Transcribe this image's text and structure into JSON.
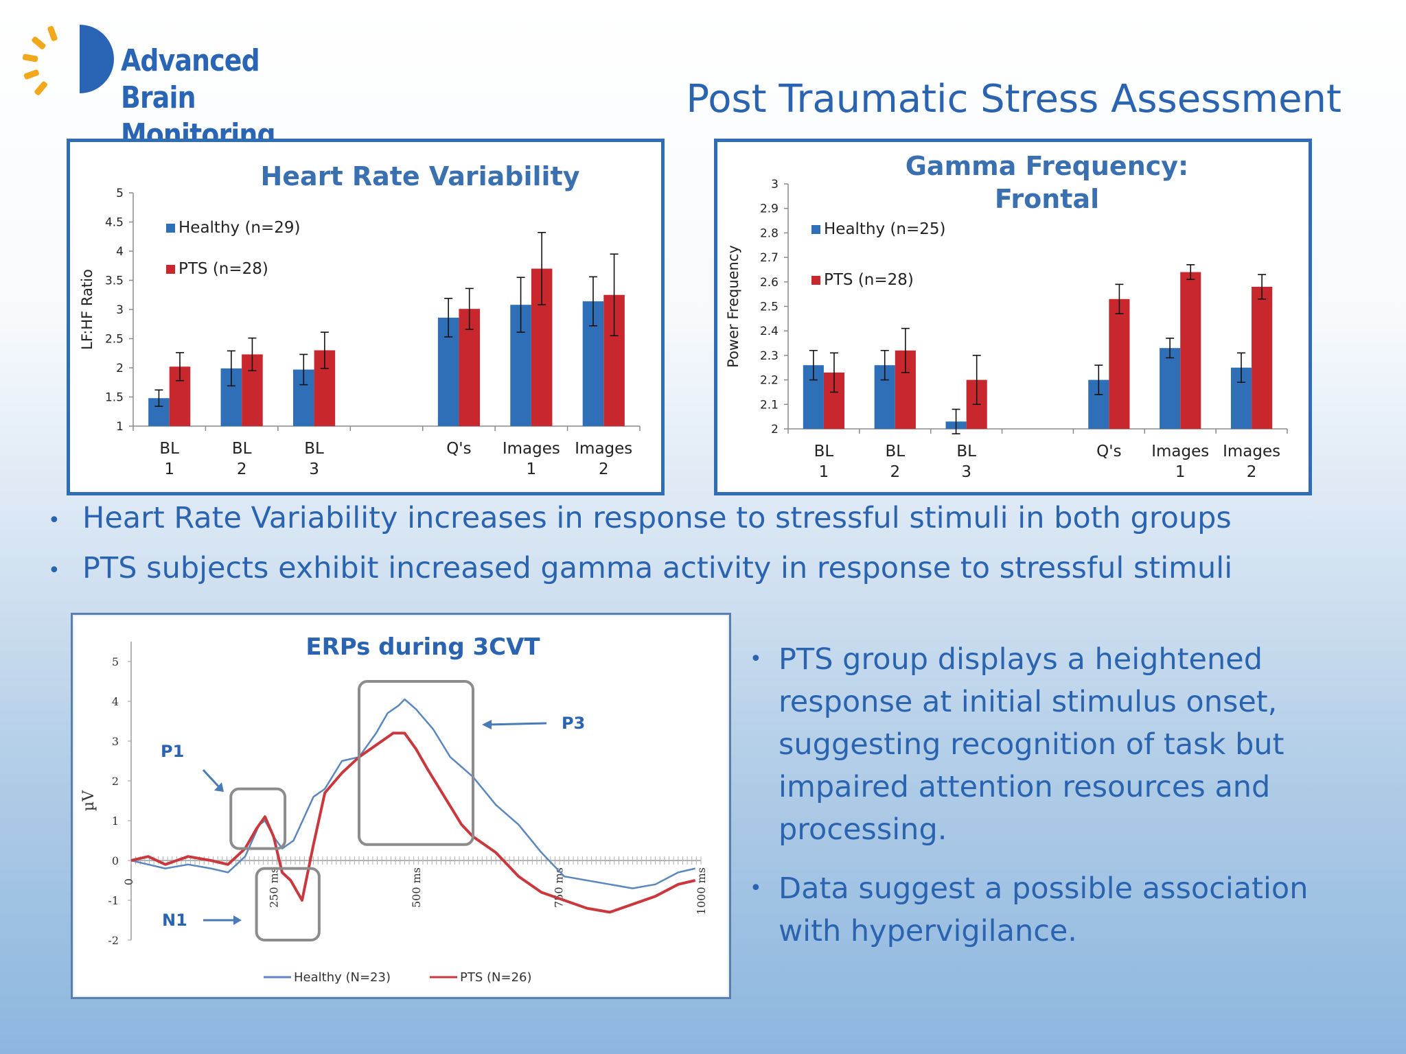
{
  "logo": {
    "line1": "Advanced",
    "line2": "Brain Monitoring"
  },
  "slide_title": "Post Traumatic Stress Assessment",
  "colors": {
    "healthy": "#2f6fb8",
    "pts": "#c8282d",
    "title_blue": "#2a64b0",
    "chart_title": "#3a6fb0"
  },
  "chart_data": [
    {
      "type": "bar",
      "title": "Heart Rate Variability",
      "ylabel": "LF:HF Ratio",
      "xlabel": "",
      "ylim": [
        1,
        5
      ],
      "yticks": [
        "1",
        "1.5",
        "2",
        "2.5",
        "3",
        "3.5",
        "4",
        "4.5",
        "5"
      ],
      "categories": [
        "BL 1",
        "BL 2",
        "BL 3",
        "",
        "Q's",
        "Images 1",
        "Images 2"
      ],
      "series": [
        {
          "name": "Healthy (n=29)",
          "values": [
            1.48,
            1.99,
            1.97,
            null,
            2.86,
            3.08,
            3.14
          ],
          "errors": [
            0.14,
            0.3,
            0.26,
            null,
            0.33,
            0.47,
            0.42
          ]
        },
        {
          "name": "PTS (n=28)",
          "values": [
            2.02,
            2.23,
            2.3,
            null,
            3.01,
            3.7,
            3.25
          ],
          "errors": [
            0.24,
            0.28,
            0.31,
            null,
            0.35,
            0.62,
            0.7
          ]
        }
      ],
      "legend": "top-left"
    },
    {
      "type": "bar",
      "title": "Gamma Frequency: Frontal",
      "ylabel": "Power Frequency",
      "xlabel": "",
      "ylim": [
        2,
        3
      ],
      "yticks": [
        "2",
        "2.1",
        "2.2",
        "2.3",
        "2.4",
        "2.5",
        "2.6",
        "2.7",
        "2.8",
        "2.9",
        "3"
      ],
      "categories": [
        "BL 1",
        "BL 2",
        "BL 3",
        "",
        "Q's",
        "Images 1",
        "Images 2"
      ],
      "series": [
        {
          "name": "Healthy (n=25)",
          "values": [
            2.26,
            2.26,
            2.03,
            null,
            2.2,
            2.33,
            2.25
          ],
          "errors": [
            0.06,
            0.06,
            0.05,
            null,
            0.06,
            0.04,
            0.06
          ]
        },
        {
          "name": "PTS (n=28)",
          "values": [
            2.23,
            2.32,
            2.2,
            null,
            2.53,
            2.64,
            2.58
          ],
          "errors": [
            0.08,
            0.09,
            0.1,
            null,
            0.06,
            0.03,
            0.05
          ]
        }
      ],
      "legend": "top-left"
    },
    {
      "type": "line",
      "title": "ERPs during 3CVT",
      "ylabel": "µV",
      "xlabel": "",
      "ylim": [
        -2,
        5
      ],
      "xlim": [
        0,
        1000
      ],
      "yticks": [
        "-2",
        "-1",
        "0",
        "1",
        "2",
        "3",
        "4",
        "5"
      ],
      "time_labels": [
        "0",
        "250 ms",
        "500 ms",
        "750 ms",
        "1000 ms"
      ],
      "series": [
        {
          "name": "Healthy (N=23)",
          "x": [
            0,
            30,
            60,
            100,
            140,
            170,
            200,
            225,
            235,
            250,
            265,
            285,
            320,
            340,
            370,
            400,
            430,
            450,
            470,
            480,
            500,
            530,
            560,
            600,
            640,
            680,
            720,
            760,
            800,
            840,
            880,
            920,
            960,
            990
          ],
          "y": [
            0.0,
            -0.1,
            -0.2,
            -0.1,
            -0.2,
            -0.3,
            0.1,
            0.9,
            1.0,
            0.6,
            0.3,
            0.5,
            1.6,
            1.8,
            2.5,
            2.6,
            3.2,
            3.7,
            3.9,
            4.05,
            3.8,
            3.3,
            2.6,
            2.1,
            1.4,
            0.9,
            0.2,
            -0.4,
            -0.5,
            -0.6,
            -0.7,
            -0.6,
            -0.3,
            -0.2
          ]
        },
        {
          "name": "PTS (N=26)",
          "x": [
            0,
            30,
            60,
            100,
            140,
            170,
            200,
            220,
            235,
            250,
            265,
            280,
            300,
            320,
            340,
            370,
            400,
            430,
            460,
            480,
            500,
            520,
            550,
            580,
            600,
            640,
            680,
            720,
            760,
            800,
            840,
            880,
            920,
            960,
            990
          ],
          "y": [
            0.0,
            0.1,
            -0.1,
            0.1,
            0.0,
            -0.1,
            0.3,
            0.8,
            1.1,
            0.6,
            -0.3,
            -0.5,
            -1.0,
            0.4,
            1.7,
            2.2,
            2.6,
            2.9,
            3.2,
            3.2,
            2.8,
            2.3,
            1.6,
            0.9,
            0.6,
            0.2,
            -0.4,
            -0.8,
            -1.0,
            -1.2,
            -1.3,
            -1.1,
            -0.9,
            -0.6,
            -0.5
          ]
        }
      ],
      "annotations": [
        "P1",
        "N1",
        "P3"
      ],
      "legend": "bottom"
    }
  ],
  "bullets_middle": [
    "Heart Rate Variability increases in response to stressful stimuli in both groups",
    "PTS subjects exhibit increased gamma activity in response to stressful stimuli"
  ],
  "bullets_right": [
    "PTS group displays a heightened response at initial stimulus onset, suggesting recognition of task but impaired attention resources and processing.",
    "Data suggest a possible association with hypervigilance."
  ]
}
